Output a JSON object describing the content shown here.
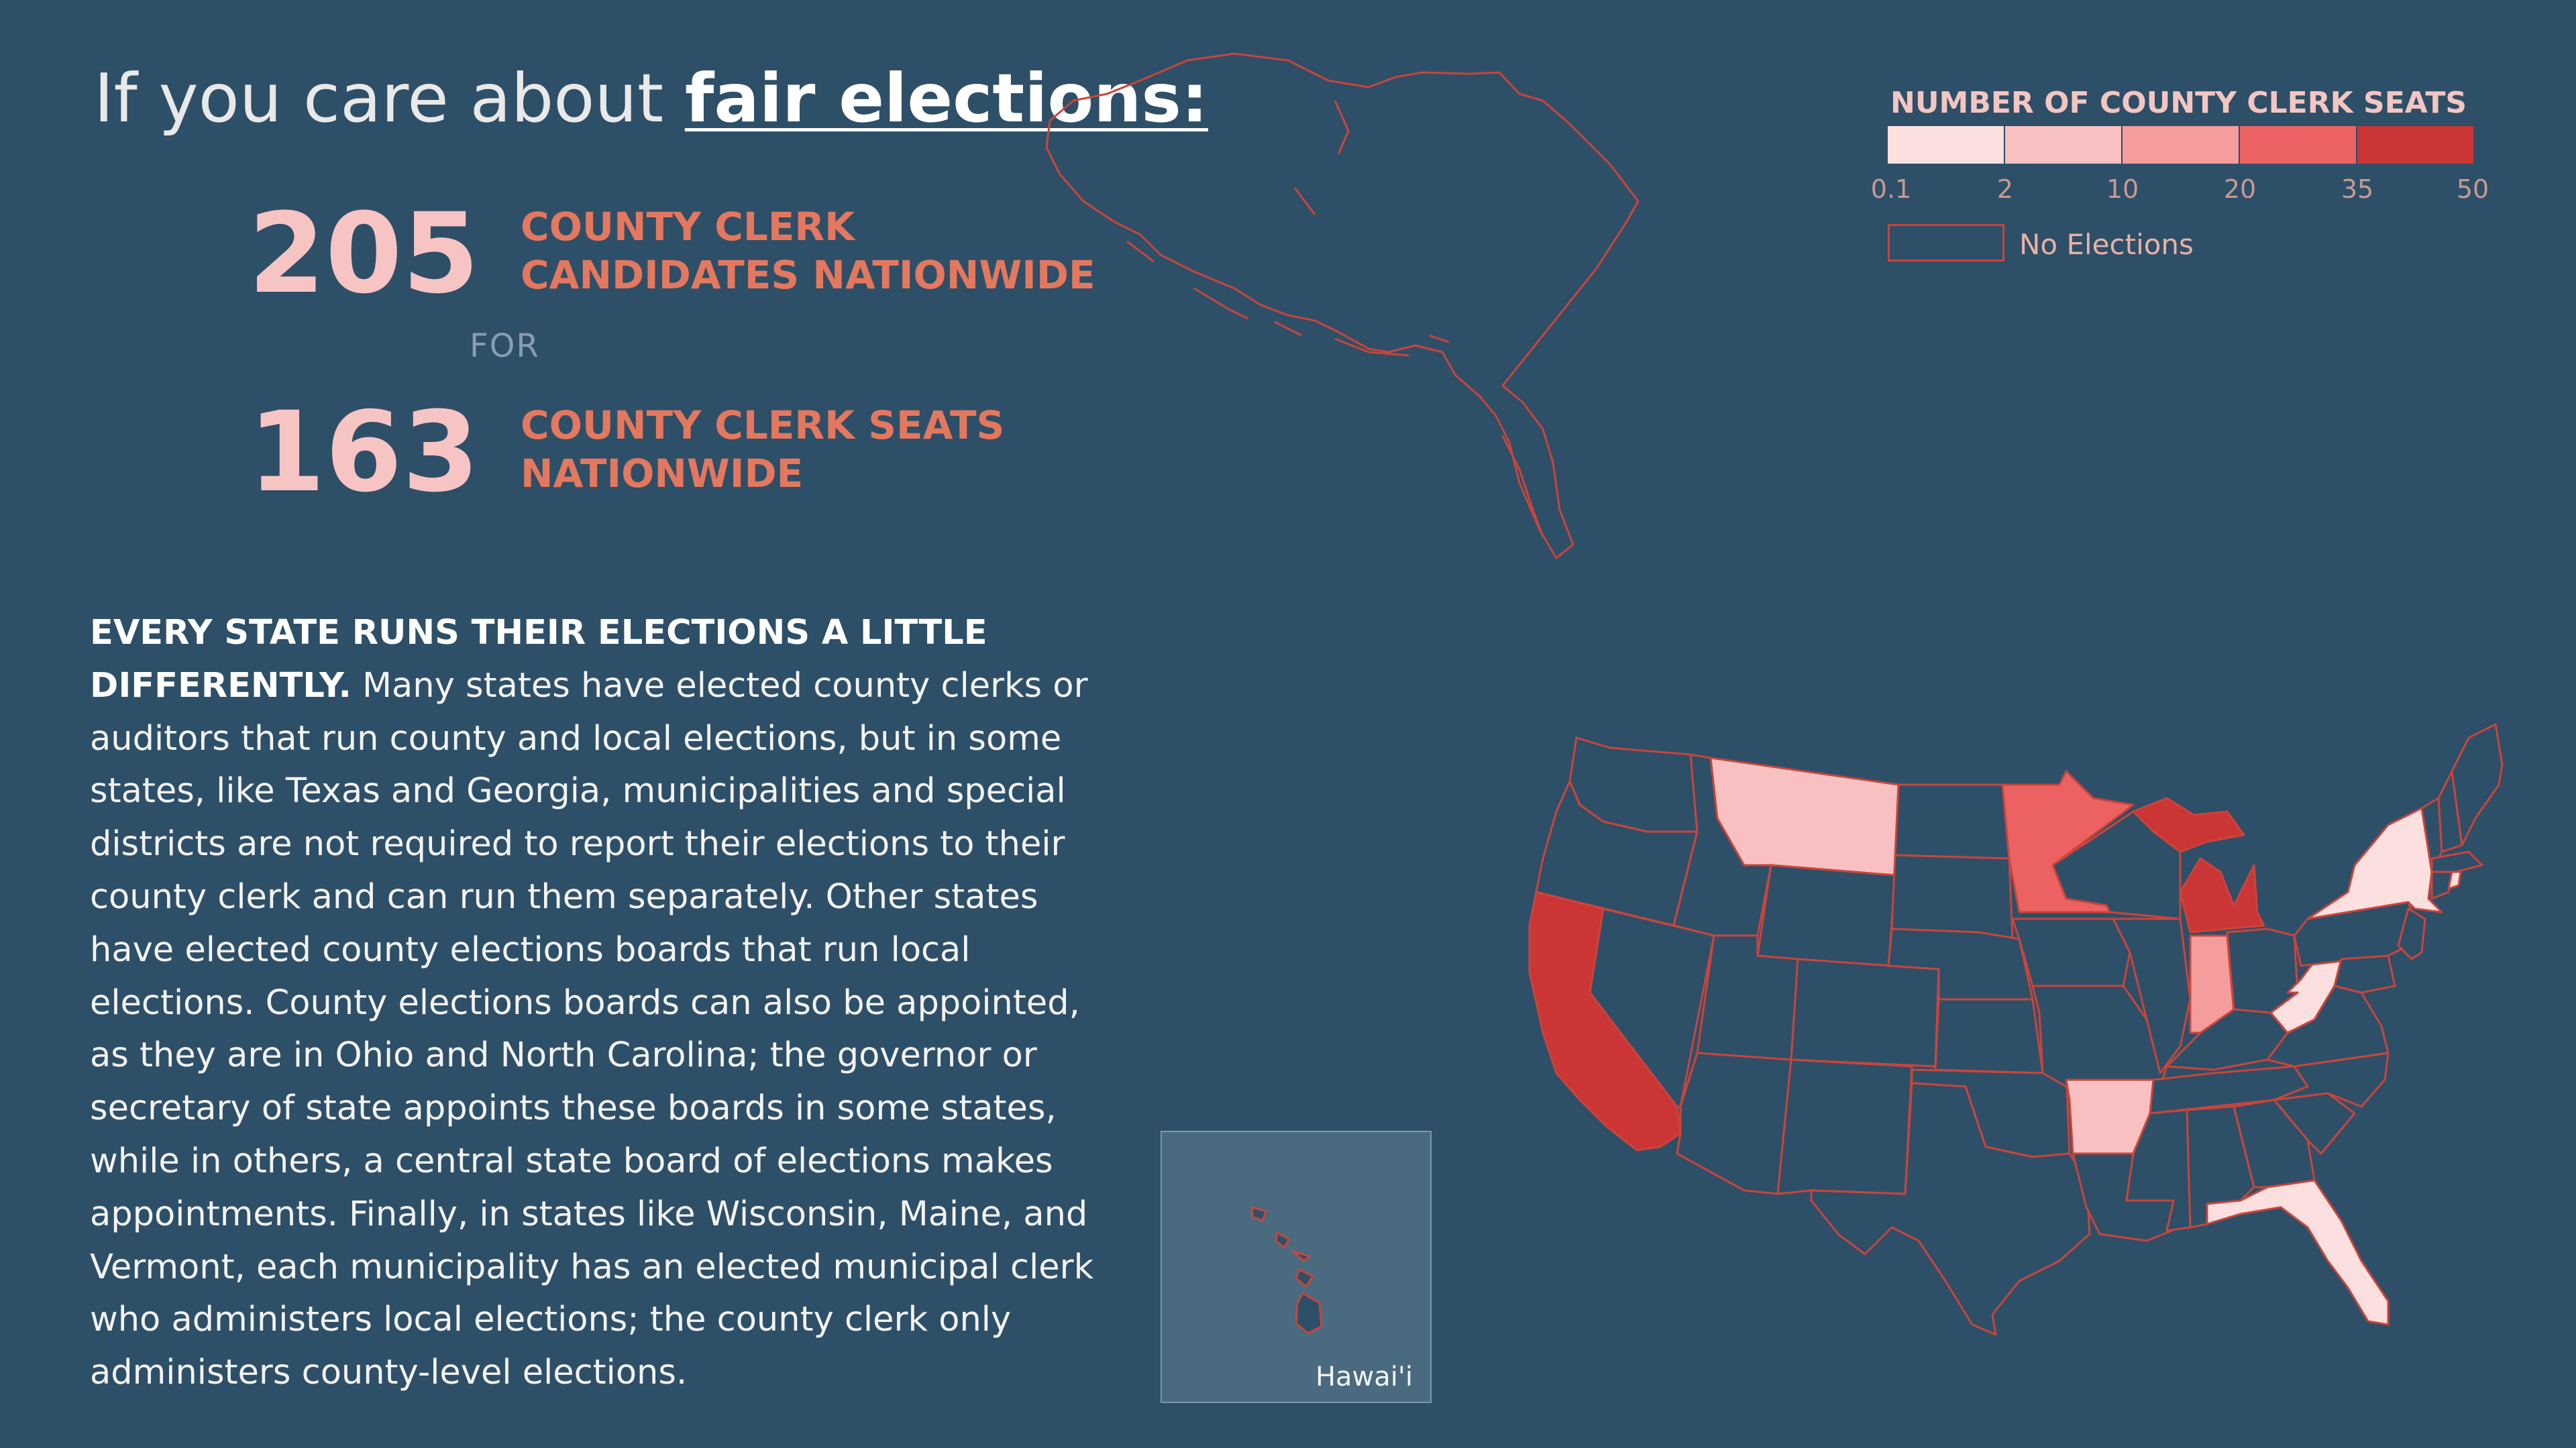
{
  "header": {
    "title_prefix": "If you care about",
    "title_emphasis": "fair elections:"
  },
  "stats": {
    "candidates_count": "205",
    "candidates_label_line1": "COUNTY CLERK",
    "candidates_label_line2": "CANDIDATES NATIONWIDE",
    "connector": "FOR",
    "seats_count": "163",
    "seats_label_line1": "COUNTY CLERK SEATS",
    "seats_label_line2": "NATIONWIDE"
  },
  "body": {
    "lead": "EVERY STATE RUNS THEIR ELECTIONS A LITTLE DIFFERENTLY.",
    "text": "Many states have elected county clerks or auditors that run county and local elections, but in some states, like Texas and Georgia, municipalities and special districts are not required to report their elections to their county clerk and can run them separately. Other states have elected county elections boards that run local elections. County elections boards can also be appointed, as they are in Ohio and North Carolina; the governor or secretary of state appoints these boards in some states, while in others, a central state board of elections makes appointments. Finally, in states like Wisconsin, Maine, and Vermont, each municipality has an elected municipal clerk who administers local elections; the county clerk only administers county-level elections."
  },
  "legend": {
    "title": "NUMBER OF COUNTY CLERK SEATS",
    "ticks": [
      "0.1",
      "2",
      "10",
      "20",
      "35",
      "50"
    ],
    "colors": [
      "#fcdfdf",
      "#f8c0c0",
      "#f59c9c",
      "#ec6262",
      "#cc3535"
    ],
    "no_elections_label": "No Elections"
  },
  "map": {
    "outline_color": "#c9453b",
    "no_election_fill": "#2e4f68",
    "highlighted_states": [
      {
        "state": "California",
        "bin": 4
      },
      {
        "state": "Michigan",
        "bin": 4
      },
      {
        "state": "Minnesota",
        "bin": 3
      },
      {
        "state": "Montana",
        "bin": 1
      },
      {
        "state": "Indiana",
        "bin": 2
      },
      {
        "state": "Arkansas",
        "bin": 1
      },
      {
        "state": "New York",
        "bin": 0
      },
      {
        "state": "West Virginia",
        "bin": 0
      },
      {
        "state": "Florida",
        "bin": 0
      },
      {
        "state": "Rhode Island",
        "bin": 0
      }
    ],
    "hawaii_label": "Hawai'i"
  }
}
